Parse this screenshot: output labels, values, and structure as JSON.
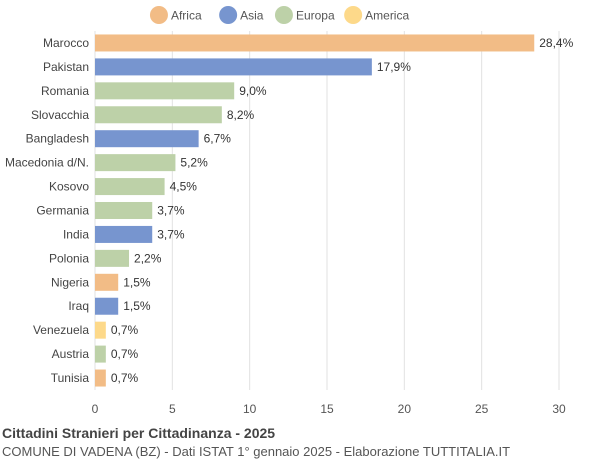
{
  "chart_data": {
    "type": "bar",
    "orientation": "horizontal",
    "title": "Cittadini Stranieri per Cittadinanza - 2025",
    "subtitle": "COMUNE DI VADENA (BZ) - Dati ISTAT 1° gennaio 2025 - Elaborazione TUTTITALIA.IT",
    "xlim": [
      0,
      30
    ],
    "xticks": [
      "0",
      "5",
      "10",
      "15",
      "20",
      "25",
      "30"
    ],
    "grid": true,
    "legend_position": "top-center",
    "legend": [
      {
        "name": "Africa",
        "color": "#f2bc86"
      },
      {
        "name": "Asia",
        "color": "#7795cf"
      },
      {
        "name": "Europa",
        "color": "#bdd1a8"
      },
      {
        "name": "America",
        "color": "#fdd98a"
      }
    ],
    "categories": [
      "Marocco",
      "Pakistan",
      "Romania",
      "Slovacchia",
      "Bangladesh",
      "Macedonia d/N.",
      "Kosovo",
      "Germania",
      "India",
      "Polonia",
      "Nigeria",
      "Iraq",
      "Venezuela",
      "Austria",
      "Tunisia"
    ],
    "values": [
      28.4,
      17.9,
      9.0,
      8.2,
      6.7,
      5.2,
      4.5,
      3.7,
      3.7,
      2.2,
      1.5,
      1.5,
      0.7,
      0.7,
      0.7
    ],
    "labels": [
      "28,4%",
      "17,9%",
      "9,0%",
      "8,2%",
      "6,7%",
      "5,2%",
      "4,5%",
      "3,7%",
      "3,7%",
      "2,2%",
      "1,5%",
      "1,5%",
      "0,7%",
      "0,7%",
      "0,7%"
    ],
    "groups": [
      "Africa",
      "Asia",
      "Europa",
      "Europa",
      "Asia",
      "Europa",
      "Europa",
      "Europa",
      "Asia",
      "Europa",
      "Africa",
      "Asia",
      "America",
      "Europa",
      "Africa"
    ]
  }
}
